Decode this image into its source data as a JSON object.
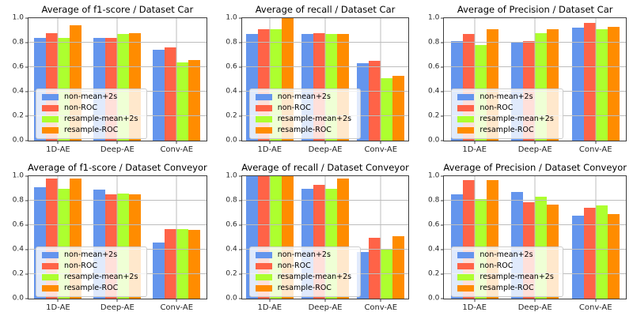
{
  "figure": {
    "background": "#ffffff",
    "gridline_color": "#bdbdbd",
    "spine_color": "#3c3c3c"
  },
  "series_colors": {
    "non-mean+2s": "#6495ED",
    "non-ROC": "#FF6347",
    "resample-mean+2s": "#ADFF2F",
    "resample-ROC": "#FF8C00"
  },
  "chart_data": [
    {
      "type": "bar",
      "title": "Average of f1-score / Dataset Car",
      "categories": [
        "1D-AE",
        "Deep-AE",
        "Conv-AE"
      ],
      "yticks": [
        "0.0",
        "0.2",
        "0.4",
        "0.6",
        "0.8",
        "1.0"
      ],
      "ylim": [
        0,
        1.0
      ],
      "grid": true,
      "legend_position": "lower left",
      "series": [
        {
          "name": "non-mean+2s",
          "values": [
            0.84,
            0.84,
            0.74
          ]
        },
        {
          "name": "non-ROC",
          "values": [
            0.88,
            0.84,
            0.76
          ]
        },
        {
          "name": "resample-mean+2s",
          "values": [
            0.84,
            0.87,
            0.64
          ]
        },
        {
          "name": "resample-ROC",
          "values": [
            0.94,
            0.88,
            0.66
          ]
        }
      ]
    },
    {
      "type": "bar",
      "title": "Average of recall / Dataset Car",
      "categories": [
        "1D-AE",
        "Deep-AE",
        "Conv-AE"
      ],
      "yticks": [
        "0.0",
        "0.2",
        "0.4",
        "0.6",
        "0.8",
        "1.0"
      ],
      "ylim": [
        0,
        1.0
      ],
      "grid": true,
      "legend_position": "lower left",
      "series": [
        {
          "name": "non-mean+2s",
          "values": [
            0.87,
            0.87,
            0.63
          ]
        },
        {
          "name": "non-ROC",
          "values": [
            0.91,
            0.88,
            0.65
          ]
        },
        {
          "name": "resample-mean+2s",
          "values": [
            0.91,
            0.87,
            0.51
          ]
        },
        {
          "name": "resample-ROC",
          "values": [
            1.0,
            0.87,
            0.53
          ]
        }
      ]
    },
    {
      "type": "bar",
      "title": "Average of Precision / Dataset Car",
      "categories": [
        "1D-AE",
        "Deep-AE",
        "Conv-AE"
      ],
      "yticks": [
        "0.0",
        "0.2",
        "0.4",
        "0.6",
        "0.8",
        "1.0"
      ],
      "ylim": [
        0,
        1.0
      ],
      "grid": true,
      "legend_position": "lower left",
      "series": [
        {
          "name": "non-mean+2s",
          "values": [
            0.81,
            0.8,
            0.92
          ]
        },
        {
          "name": "non-ROC",
          "values": [
            0.87,
            0.81,
            0.96
          ]
        },
        {
          "name": "resample-mean+2s",
          "values": [
            0.78,
            0.88,
            0.91
          ]
        },
        {
          "name": "resample-ROC",
          "values": [
            0.91,
            0.91,
            0.93
          ]
        }
      ]
    },
    {
      "type": "bar",
      "title": "Average of f1-score / Dataset Conveyor",
      "categories": [
        "1D-AE",
        "Deep-AE",
        "Conv-AE"
      ],
      "yticks": [
        "0.0",
        "0.2",
        "0.4",
        "0.6",
        "0.8",
        "1.0"
      ],
      "ylim": [
        0,
        1.0
      ],
      "grid": true,
      "legend_position": "lower left",
      "series": [
        {
          "name": "non-mean+2s",
          "values": [
            0.91,
            0.89,
            0.46
          ]
        },
        {
          "name": "non-ROC",
          "values": [
            0.98,
            0.85,
            0.57
          ]
        },
        {
          "name": "resample-mean+2s",
          "values": [
            0.9,
            0.86,
            0.57
          ]
        },
        {
          "name": "resample-ROC",
          "values": [
            0.98,
            0.85,
            0.56
          ]
        }
      ]
    },
    {
      "type": "bar",
      "title": "Average of recall / Dataset Conveyor",
      "categories": [
        "1D-AE",
        "Deep-AE",
        "Conv-AE"
      ],
      "yticks": [
        "0.0",
        "0.2",
        "0.4",
        "0.6",
        "0.8",
        "1.0"
      ],
      "ylim": [
        0,
        1.0
      ],
      "grid": true,
      "legend_position": "lower left",
      "series": [
        {
          "name": "non-mean+2s",
          "values": [
            1.0,
            0.9,
            0.38
          ]
        },
        {
          "name": "non-ROC",
          "values": [
            1.0,
            0.93,
            0.5
          ]
        },
        {
          "name": "resample-mean+2s",
          "values": [
            1.0,
            0.9,
            0.4
          ]
        },
        {
          "name": "resample-ROC",
          "values": [
            1.0,
            0.98,
            0.51
          ]
        }
      ]
    },
    {
      "type": "bar",
      "title": "Average of Precision / Dataset Conveyor",
      "categories": [
        "1D-AE",
        "Deep-AE",
        "Conv-AE"
      ],
      "yticks": [
        "0.0",
        "0.2",
        "0.4",
        "0.6",
        "0.8",
        "1.0"
      ],
      "ylim": [
        0,
        1.0
      ],
      "grid": true,
      "legend_position": "lower left",
      "series": [
        {
          "name": "non-mean+2s",
          "values": [
            0.85,
            0.87,
            0.68
          ]
        },
        {
          "name": "non-ROC",
          "values": [
            0.97,
            0.79,
            0.74
          ]
        },
        {
          "name": "resample-mean+2s",
          "values": [
            0.81,
            0.83,
            0.76
          ]
        },
        {
          "name": "resample-ROC",
          "values": [
            0.97,
            0.77,
            0.69
          ]
        }
      ]
    }
  ]
}
